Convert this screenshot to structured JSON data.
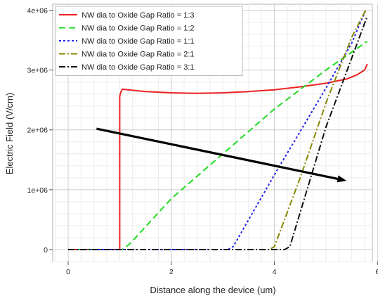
{
  "chart_data": {
    "type": "line",
    "title": "",
    "xlabel": "Distance along the device (um)",
    "ylabel": "Electric Field (V/cm)",
    "xlim": [
      -0.3,
      5.9
    ],
    "ylim": [
      -200000,
      4100000
    ],
    "x_ticks": [
      0,
      2,
      4,
      6
    ],
    "x_tick_labels": [
      "0",
      "2",
      "4",
      "6"
    ],
    "y_ticks": [
      0,
      1000000,
      2000000,
      3000000,
      4000000
    ],
    "y_tick_labels": [
      "0",
      "1e+06",
      "2e+06",
      "3e+06",
      "4e+06"
    ],
    "grid": true,
    "legend_position": "top-left",
    "series": [
      {
        "name": "NW dia to Oxide Gap Ratio = 1:3",
        "color": "#ee2222",
        "dash": "solid",
        "points": [
          [
            0,
            0
          ],
          [
            1.0,
            0
          ],
          [
            1.0,
            2560000
          ],
          [
            1.02,
            2630000
          ],
          [
            1.05,
            2680000
          ],
          [
            1.5,
            2640000
          ],
          [
            2.0,
            2620000
          ],
          [
            2.5,
            2610000
          ],
          [
            3.0,
            2620000
          ],
          [
            3.5,
            2640000
          ],
          [
            4.0,
            2670000
          ],
          [
            4.5,
            2720000
          ],
          [
            5.0,
            2780000
          ],
          [
            5.4,
            2850000
          ],
          [
            5.6,
            2920000
          ],
          [
            5.75,
            3000000
          ],
          [
            5.8,
            3100000
          ]
        ]
      },
      {
        "name": "NW dia to Oxide Gap Ratio = 1:2",
        "color": "#22dd22",
        "dash": "long-dash",
        "points": [
          [
            0,
            0
          ],
          [
            1.05,
            0
          ],
          [
            1.2,
            100000
          ],
          [
            2.0,
            850000
          ],
          [
            3.0,
            1600000
          ],
          [
            4.0,
            2350000
          ],
          [
            5.0,
            3000000
          ],
          [
            5.5,
            3300000
          ],
          [
            5.8,
            3480000
          ]
        ]
      },
      {
        "name": "NW dia to Oxide Gap Ratio = 1:1",
        "color": "#2222ee",
        "dash": "short-dash",
        "points": [
          [
            0,
            0
          ],
          [
            3.1,
            0
          ],
          [
            3.2,
            50000
          ],
          [
            4.0,
            1250000
          ],
          [
            5.0,
            2700000
          ],
          [
            5.5,
            3450000
          ],
          [
            5.77,
            4000000
          ]
        ]
      },
      {
        "name": "NW dia to Oxide Gap Ratio = 2:1",
        "color": "#888800",
        "dash": "dash-dot",
        "points": [
          [
            0,
            0
          ],
          [
            3.9,
            0
          ],
          [
            4.0,
            50000
          ],
          [
            4.5,
            1200000
          ],
          [
            5.0,
            2450000
          ],
          [
            5.5,
            3550000
          ],
          [
            5.77,
            4000000
          ]
        ]
      },
      {
        "name": "NW dia to Oxide Gap Ratio = 3:1",
        "color": "#111111",
        "dash": "dash-dot",
        "points": [
          [
            0,
            0
          ],
          [
            4.2,
            0
          ],
          [
            4.3,
            50000
          ],
          [
            5.0,
            2050000
          ],
          [
            5.5,
            3200000
          ],
          [
            5.8,
            3900000
          ]
        ]
      }
    ],
    "annotations": [
      {
        "type": "arrow",
        "color": "#000000",
        "from": [
          0.55,
          2020000
        ],
        "to": [
          5.4,
          1150000
        ]
      }
    ]
  }
}
